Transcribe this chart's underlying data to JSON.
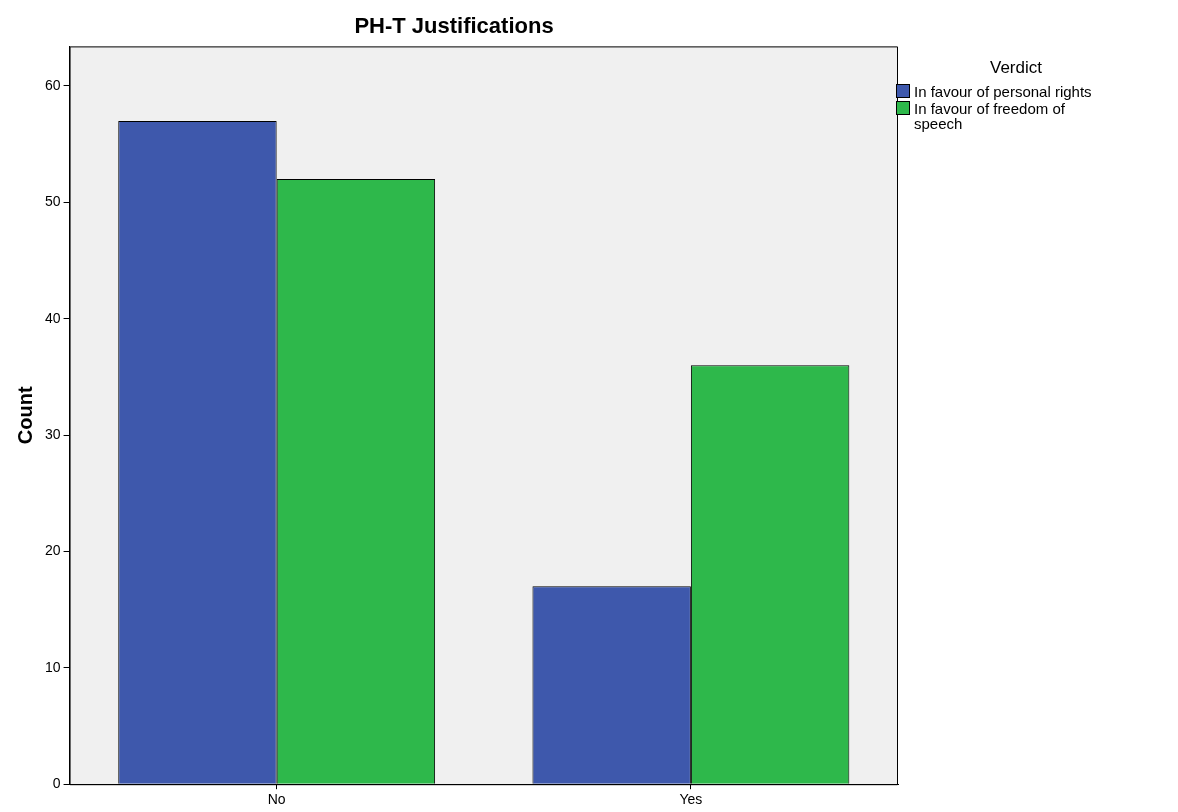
{
  "chart_data": {
    "type": "bar",
    "title": "PH-T Justifications",
    "ylabel": "Count",
    "legend_title": "Verdict",
    "categories": [
      "No",
      "Yes"
    ],
    "series": [
      {
        "name": "In favour of personal rights",
        "color": "#3e58ac",
        "values": [
          57,
          17
        ]
      },
      {
        "name": "In favour of freedom of speech",
        "color": "#2eb84b",
        "values": [
          52,
          36
        ]
      }
    ],
    "ylim": [
      0,
      63.4
    ],
    "yticks": [
      0,
      10,
      20,
      30,
      40,
      50,
      60
    ],
    "grid": false,
    "legend": "top right"
  }
}
